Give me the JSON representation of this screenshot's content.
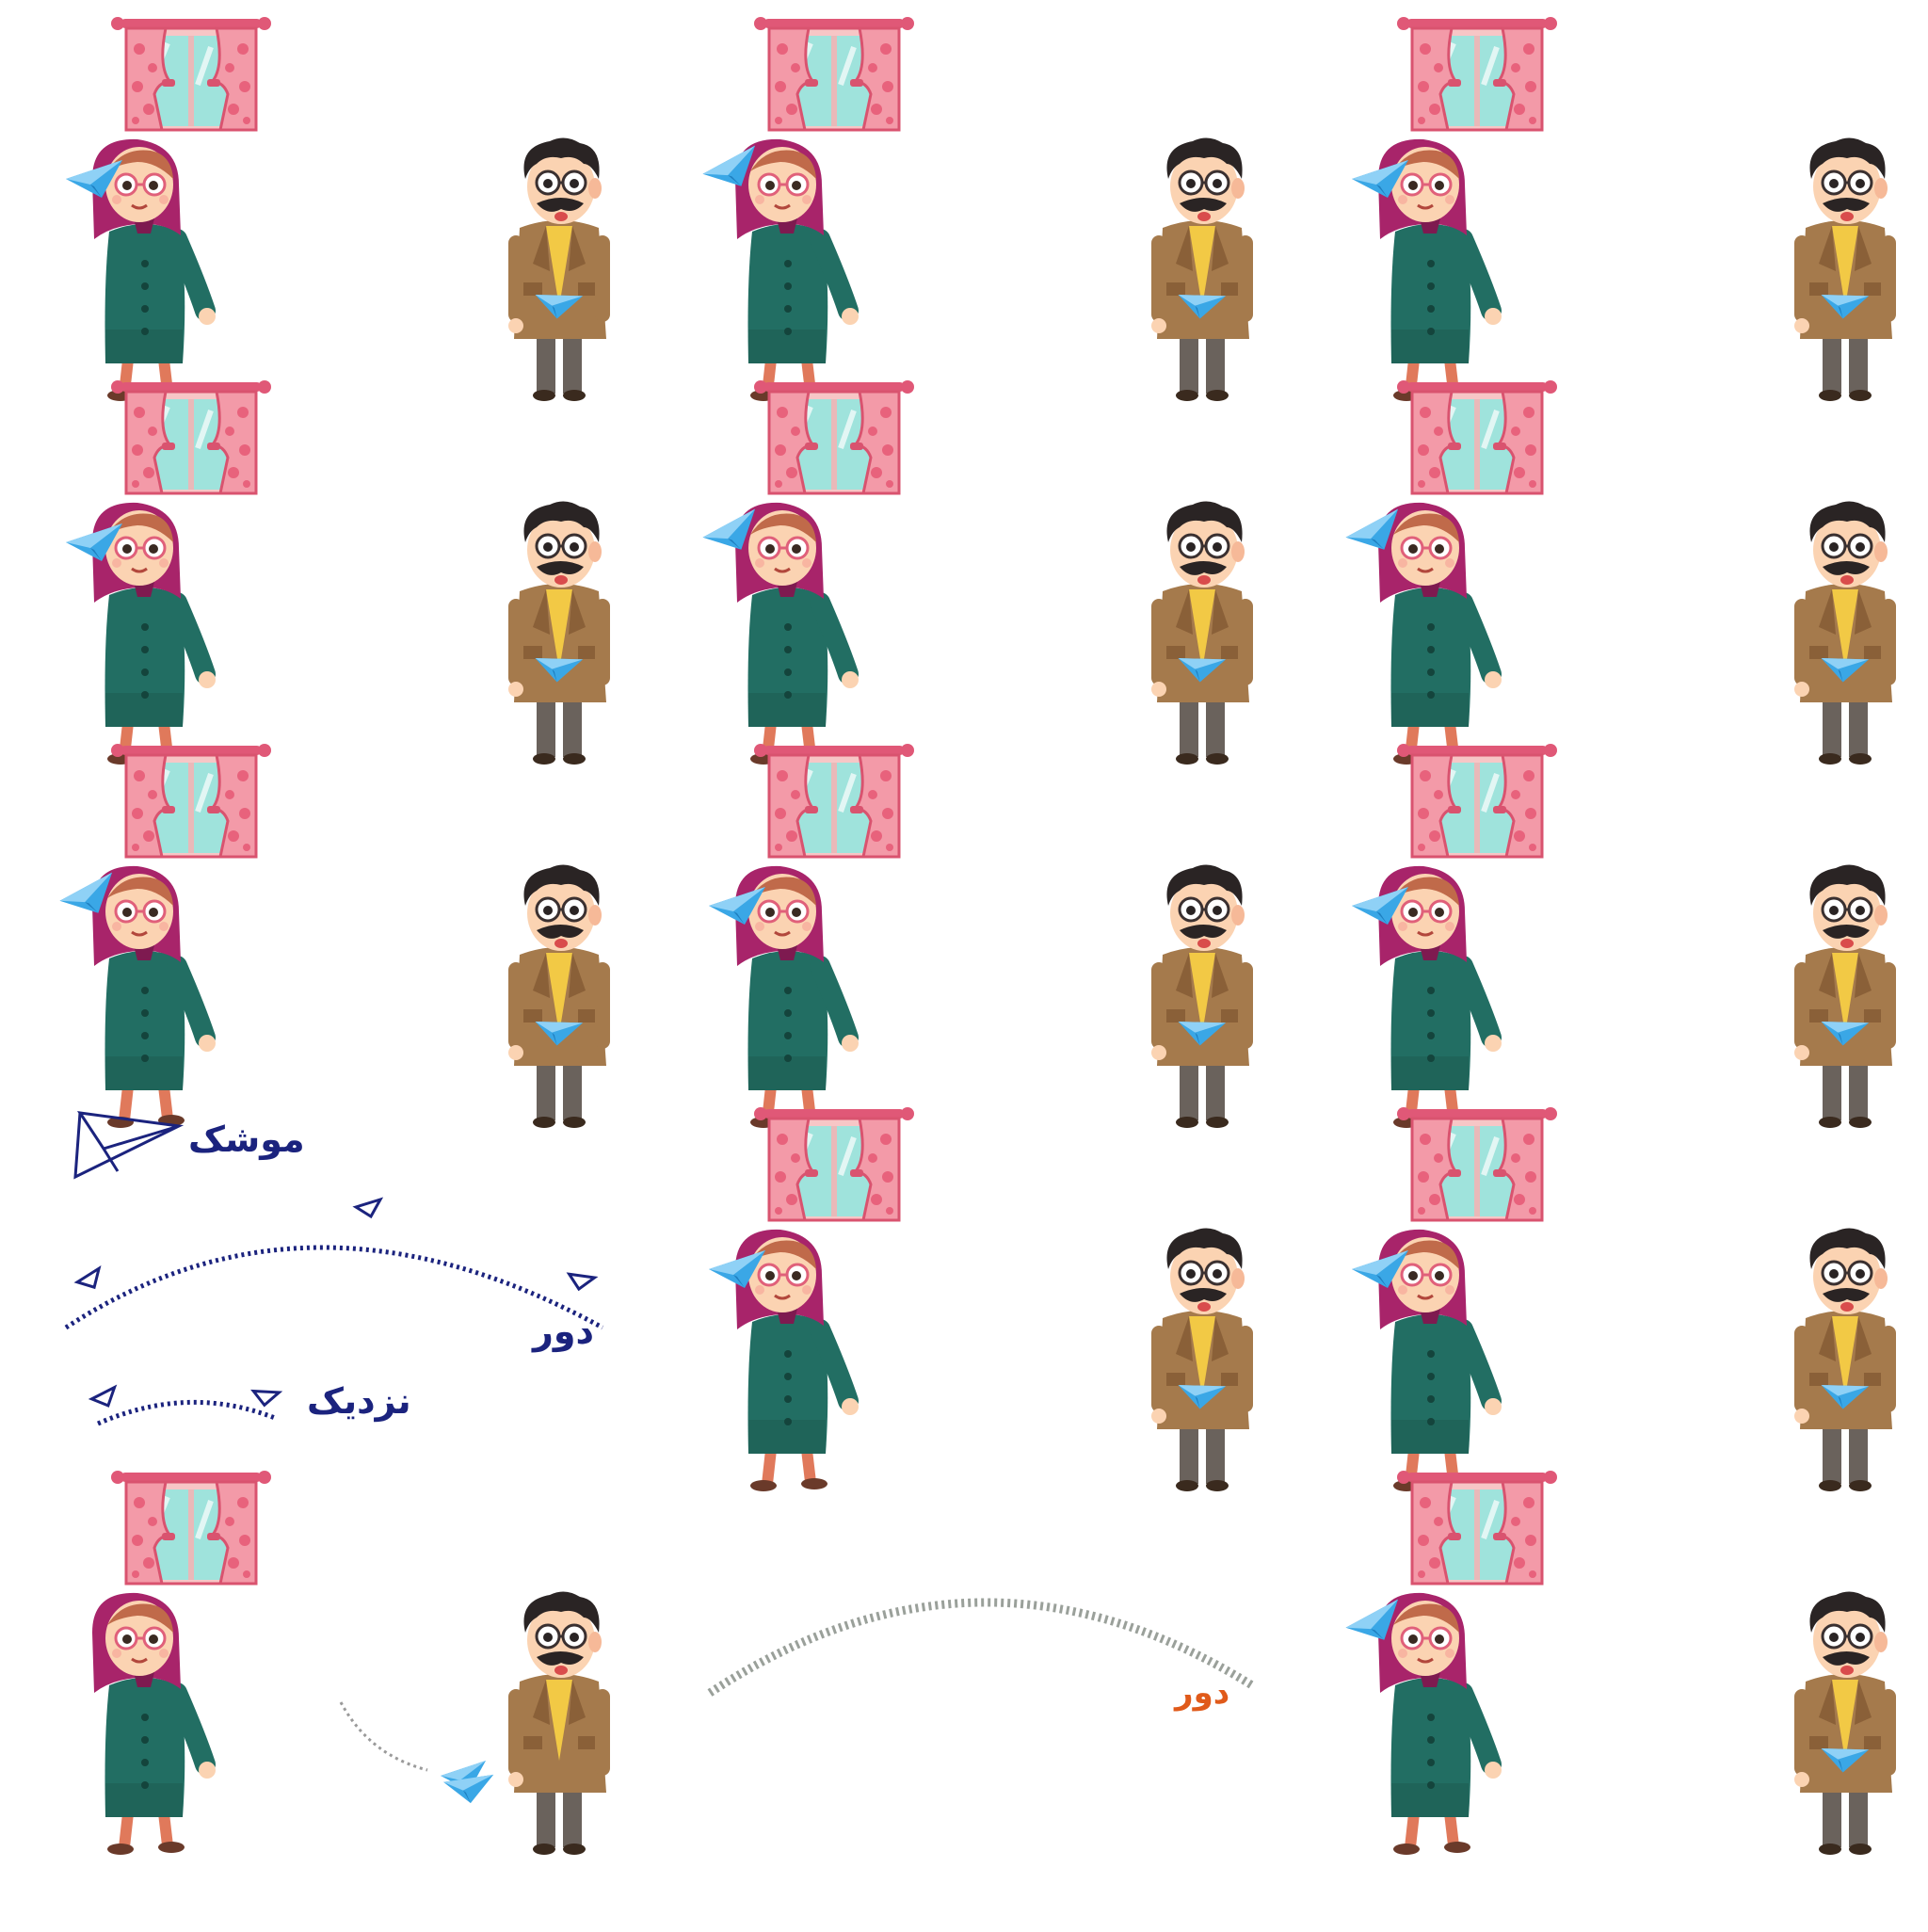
{
  "sprite_sheet": {
    "description_note": "",
    "frame_sets": [
      {
        "col": 0,
        "row": 0,
        "girl_pose": "eye",
        "boy_pose": "low"
      },
      {
        "col": 1,
        "row": 0,
        "girl_pose": "up",
        "boy_pose": "low"
      },
      {
        "col": 2,
        "row": 0,
        "girl_pose": "eye",
        "boy_pose": "low"
      },
      {
        "col": 0,
        "row": 1,
        "girl_pose": "eye",
        "boy_pose": "low"
      },
      {
        "col": 1,
        "row": 1,
        "girl_pose": "up",
        "boy_pose": "low"
      },
      {
        "col": 2,
        "row": 1,
        "girl_pose": "up",
        "boy_pose": "low"
      },
      {
        "col": 0,
        "row": 2,
        "girl_pose": "up",
        "boy_pose": "low"
      },
      {
        "col": 1,
        "row": 2,
        "girl_pose": "eye",
        "boy_pose": "low"
      },
      {
        "col": 2,
        "row": 2,
        "girl_pose": "eye",
        "boy_pose": "low"
      },
      {
        "col": 1,
        "row": 3,
        "girl_pose": "eye",
        "boy_pose": "low"
      },
      {
        "col": 2,
        "row": 3,
        "girl_pose": "eye",
        "boy_pose": "low"
      },
      {
        "col": 0,
        "row": 4,
        "girl_pose": "down",
        "boy_pose": "none"
      },
      {
        "col": 2,
        "row": 4,
        "girl_pose": "up",
        "boy_pose": "low"
      }
    ]
  },
  "legend": {
    "missile_label": "موشک",
    "far_label": "دور",
    "near_label": "نزدیک"
  },
  "trajectory_label": "دور",
  "colors": {
    "curtain": "#f39aa8",
    "curtain_rod": "#e05877",
    "glass": "#9fe3dc",
    "hijab": "#a8246a",
    "coat_green": "#226e63",
    "jacket_brown": "#a57a4c",
    "plane_blue": "#3aa7e6",
    "legend_ink": "#1b237e",
    "far_label": "#e05a1a"
  }
}
